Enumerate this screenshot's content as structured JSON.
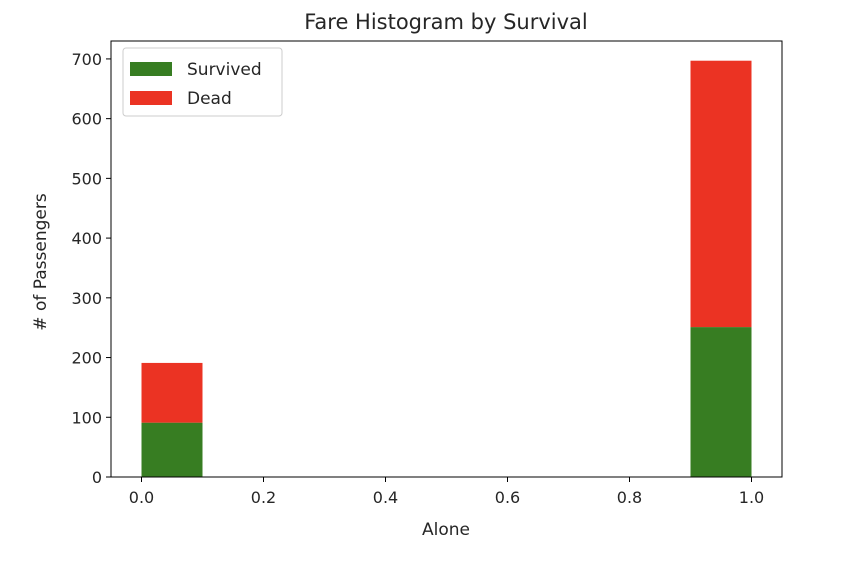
{
  "chart_data": {
    "type": "bar",
    "stacked": true,
    "title": "Fare Histogram by Survival",
    "xlabel": "Alone",
    "ylabel": "# of Passengers",
    "xlim": [
      -0.05,
      1.05
    ],
    "ylim": [
      0,
      730
    ],
    "xticks": [
      "0.0",
      "0.2",
      "0.4",
      "0.6",
      "0.8",
      "1.0"
    ],
    "yticks": [
      "0",
      "100",
      "200",
      "300",
      "400",
      "500",
      "600",
      "700"
    ],
    "bins": [
      {
        "x0": 0.0,
        "x1": 0.1
      },
      {
        "x0": 0.9,
        "x1": 1.0
      }
    ],
    "series": [
      {
        "name": "Survived",
        "color": "#377d22",
        "values": [
          91,
          251
        ]
      },
      {
        "name": "Dead",
        "color": "#eb3323",
        "values": [
          100,
          446
        ]
      }
    ],
    "legend": {
      "position": "top-left",
      "items": [
        {
          "label": "Survived",
          "color": "#377d22"
        },
        {
          "label": "Dead",
          "color": "#eb3323"
        }
      ]
    },
    "grid": false
  }
}
